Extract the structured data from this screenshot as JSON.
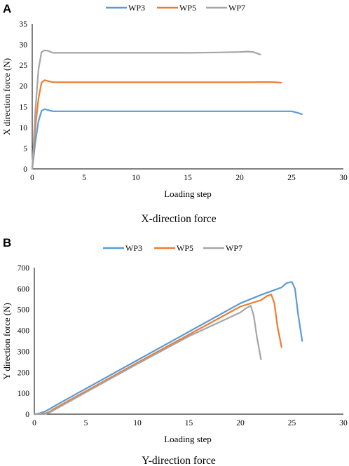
{
  "chart_data": [
    {
      "panel_label": "A",
      "type": "line",
      "title": "",
      "caption": "X-direction force",
      "xlabel": "Loading step",
      "ylabel": "X direction force (N)",
      "xlim": [
        0,
        30
      ],
      "ylim": [
        0,
        35
      ],
      "xticks": [
        0,
        5,
        10,
        15,
        20,
        25,
        30
      ],
      "yticks": [
        0,
        5,
        10,
        15,
        20,
        25,
        30,
        35
      ],
      "grid": false,
      "legend": "top",
      "series": [
        {
          "name": "WP3",
          "color": "#5b9bd5",
          "points": [
            [
              0,
              0
            ],
            [
              0.3,
              6.5
            ],
            [
              0.6,
              11.5
            ],
            [
              0.9,
              14.0
            ],
            [
              1.2,
              14.4
            ],
            [
              1.5,
              14.2
            ],
            [
              2,
              13.9
            ],
            [
              5,
              13.9
            ],
            [
              10,
              13.9
            ],
            [
              15,
              13.9
            ],
            [
              20,
              13.9
            ],
            [
              24.5,
              13.9
            ],
            [
              25,
              13.9
            ],
            [
              25.5,
              13.6
            ],
            [
              26,
              13.2
            ]
          ]
        },
        {
          "name": "WP5",
          "color": "#ed7d31",
          "points": [
            [
              0,
              0
            ],
            [
              0.3,
              10
            ],
            [
              0.6,
              17
            ],
            [
              0.9,
              20.8
            ],
            [
              1.2,
              21.4
            ],
            [
              1.5,
              21.2
            ],
            [
              2,
              20.9
            ],
            [
              5,
              20.9
            ],
            [
              10,
              20.9
            ],
            [
              15,
              20.9
            ],
            [
              20,
              20.9
            ],
            [
              23,
              20.95
            ],
            [
              23.5,
              20.9
            ],
            [
              24,
              20.8
            ]
          ]
        },
        {
          "name": "WP7",
          "color": "#a5a5a5",
          "points": [
            [
              0,
              0
            ],
            [
              0.3,
              14
            ],
            [
              0.6,
              24
            ],
            [
              0.9,
              28.2
            ],
            [
              1.2,
              28.6
            ],
            [
              1.5,
              28.5
            ],
            [
              2,
              28.0
            ],
            [
              5,
              28.0
            ],
            [
              10,
              28.0
            ],
            [
              15,
              28.0
            ],
            [
              18,
              28.1
            ],
            [
              20,
              28.2
            ],
            [
              20.8,
              28.3
            ],
            [
              21.3,
              28.2
            ],
            [
              22,
              27.6
            ]
          ]
        }
      ]
    },
    {
      "panel_label": "B",
      "type": "line",
      "title": "",
      "caption": "Y-direction force",
      "xlabel": "Loading step",
      "ylabel": "Y direction force (N)",
      "xlim": [
        0,
        30
      ],
      "ylim": [
        0,
        700
      ],
      "xticks": [
        0,
        5,
        10,
        15,
        20,
        25,
        30
      ],
      "yticks": [
        0,
        100,
        200,
        300,
        400,
        500,
        600,
        700
      ],
      "grid": false,
      "legend": "top",
      "series": [
        {
          "name": "WP3",
          "color": "#5b9bd5",
          "points": [
            [
              0,
              0
            ],
            [
              0.5,
              4
            ],
            [
              1,
              12
            ],
            [
              1.5,
              25
            ],
            [
              2,
              40
            ],
            [
              5,
              122
            ],
            [
              10,
              258
            ],
            [
              15,
              394
            ],
            [
              20,
              530
            ],
            [
              22,
              570
            ],
            [
              24,
              606
            ],
            [
              24.5,
              627
            ],
            [
              25,
              632
            ],
            [
              25.3,
              600
            ],
            [
              25.6,
              480
            ],
            [
              26,
              350
            ]
          ]
        },
        {
          "name": "WP5",
          "color": "#ed7d31",
          "points": [
            [
              0,
              0
            ],
            [
              0.5,
              1
            ],
            [
              1,
              3
            ],
            [
              1.5,
              12
            ],
            [
              2,
              28
            ],
            [
              5,
              110
            ],
            [
              10,
              246
            ],
            [
              15,
              380
            ],
            [
              20,
              514
            ],
            [
              22,
              545
            ],
            [
              22.6,
              565
            ],
            [
              23,
              572
            ],
            [
              23.3,
              530
            ],
            [
              23.6,
              420
            ],
            [
              24,
              320
            ]
          ]
        },
        {
          "name": "WP7",
          "color": "#a5a5a5",
          "points": [
            [
              0,
              0
            ],
            [
              0.5,
              0
            ],
            [
              1,
              0
            ],
            [
              1.5,
              8
            ],
            [
              2,
              22
            ],
            [
              5,
              104
            ],
            [
              10,
              240
            ],
            [
              15,
              372
            ],
            [
              20,
              486
            ],
            [
              20.5,
              505
            ],
            [
              21,
              518
            ],
            [
              21.3,
              470
            ],
            [
              21.6,
              370
            ],
            [
              22,
              262
            ]
          ]
        }
      ]
    }
  ]
}
